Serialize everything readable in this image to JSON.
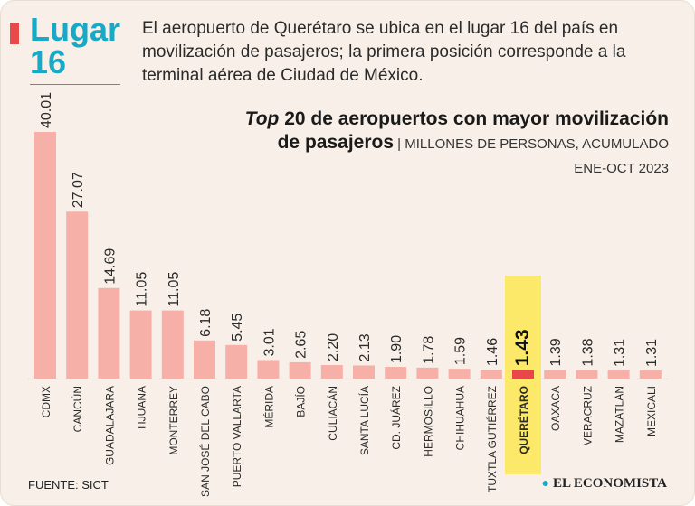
{
  "header": {
    "badge_line1": "Lugar",
    "badge_line2": "16",
    "headline": "El aeropuerto de Querétaro se ubica en el lugar 16 del país en movilización de pasajeros; la primera posición corresponde a la terminal aérea de Ciudad de México."
  },
  "chart_data": {
    "type": "bar",
    "title_italic": "Top",
    "title_rest": " 20 de aeropuertos con mayor movilización de pasajeros",
    "subtitle": "MILLONES DE PERSONAS, ACUMULADO ENE-OCT 2023",
    "categories": [
      "CDMX",
      "CANCÚN",
      "GUADALAJARA",
      "TIJUANA",
      "MONTERREY",
      "SAN JOSÉ DEL CABO",
      "PUERTO VALLARTA",
      "MÉRIDA",
      "BAJÍO",
      "CULIACÁN",
      "SANTA LUCÍA",
      "CD. JUÁREZ",
      "HERMOSILLO",
      "CHIHUAHUA",
      "TUXTLA GUTIÉRREZ",
      "QUERÉTARO",
      "OAXACA",
      "VERACRUZ",
      "MAZATLÁN",
      "MEXICALI"
    ],
    "values": [
      40.01,
      27.07,
      14.69,
      11.05,
      11.05,
      6.18,
      5.45,
      3.01,
      2.65,
      2.2,
      2.13,
      1.9,
      1.78,
      1.59,
      1.46,
      1.43,
      1.39,
      1.38,
      1.31,
      1.31
    ],
    "value_labels": [
      "40.01",
      "27.07",
      "14.69",
      "11.05",
      "11.05",
      "6.18",
      "5.45",
      "3.01",
      "2.65",
      "2.20",
      "2.13",
      "1.90",
      "1.78",
      "1.59",
      "1.46",
      "1.43",
      "1.39",
      "1.38",
      "1.31",
      "1.31"
    ],
    "highlight": "QUERÉTARO",
    "ylim": [
      0,
      40.01
    ],
    "colors": {
      "bar": "#f6b0a8",
      "highlight_bar": "#e8464a",
      "highlight_band": "#fce96a",
      "accent": "#17a9c6"
    }
  },
  "footer": {
    "source": "FUENTE: SICT",
    "brand": "EL ECONOMISTA"
  }
}
